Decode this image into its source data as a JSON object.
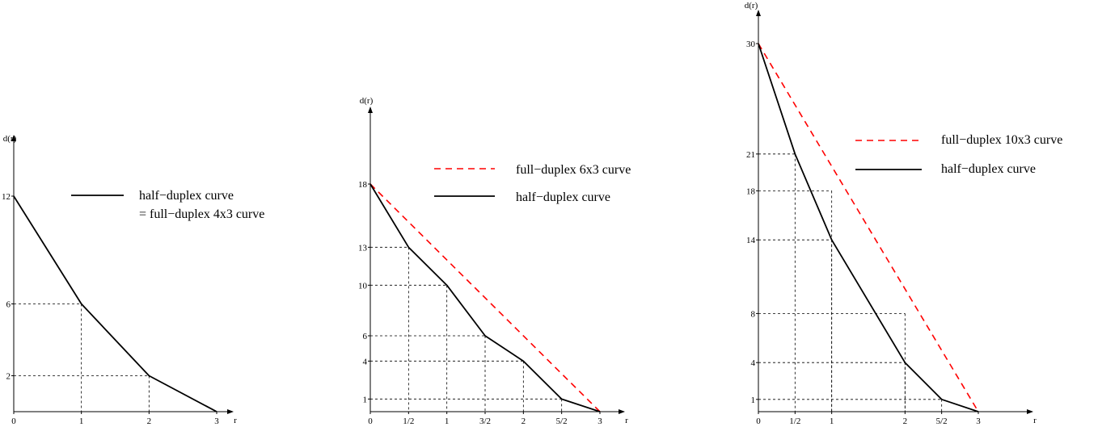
{
  "chart_data": [
    {
      "type": "line",
      "xlabel": "r",
      "ylabel": "d(r)",
      "xlim": [
        0,
        3
      ],
      "ylim": [
        0,
        12
      ],
      "x_ticks": [
        {
          "v": 0,
          "label": "0"
        },
        {
          "v": 1,
          "label": "1"
        },
        {
          "v": 2,
          "label": "2"
        },
        {
          "v": 3,
          "label": "3"
        }
      ],
      "y_ticks": [
        {
          "v": 2,
          "label": "2"
        },
        {
          "v": 6,
          "label": "6"
        },
        {
          "v": 12,
          "label": "12"
        }
      ],
      "guides": [
        [
          1,
          6
        ],
        [
          2,
          2
        ]
      ],
      "series": [
        {
          "name": "half−duplex curve",
          "name2": "= full−duplex 4x3 curve",
          "color": "#000000",
          "dash": false,
          "points": [
            [
              0,
              12
            ],
            [
              1,
              6
            ],
            [
              2,
              2
            ],
            [
              3,
              0
            ]
          ]
        }
      ]
    },
    {
      "type": "line",
      "xlabel": "r",
      "ylabel": "d(r)",
      "xlim": [
        0,
        3
      ],
      "ylim": [
        0,
        18
      ],
      "x_ticks": [
        {
          "v": 0,
          "label": "0"
        },
        {
          "v": 0.5,
          "label": "1/2"
        },
        {
          "v": 1,
          "label": "1"
        },
        {
          "v": 1.5,
          "label": "3/2"
        },
        {
          "v": 2,
          "label": "2"
        },
        {
          "v": 2.5,
          "label": "5/2"
        },
        {
          "v": 3,
          "label": "3"
        }
      ],
      "y_ticks": [
        {
          "v": 1,
          "label": "1"
        },
        {
          "v": 4,
          "label": "4"
        },
        {
          "v": 6,
          "label": "6"
        },
        {
          "v": 10,
          "label": "10"
        },
        {
          "v": 13,
          "label": "13"
        },
        {
          "v": 18,
          "label": "18"
        }
      ],
      "guides": [
        [
          0.5,
          13
        ],
        [
          1,
          10
        ],
        [
          1.5,
          6
        ],
        [
          2,
          4
        ],
        [
          2.5,
          1
        ]
      ],
      "series": [
        {
          "name": "full−duplex 6x3 curve",
          "color": "#ff0000",
          "dash": true,
          "points": [
            [
              0,
              18
            ],
            [
              3,
              0
            ]
          ]
        },
        {
          "name": "half−duplex curve",
          "color": "#000000",
          "dash": false,
          "points": [
            [
              0,
              18
            ],
            [
              0.5,
              13
            ],
            [
              1,
              10
            ],
            [
              1.5,
              6
            ],
            [
              2,
              4
            ],
            [
              2.5,
              1
            ],
            [
              3,
              0
            ]
          ]
        }
      ]
    },
    {
      "type": "line",
      "xlabel": "r",
      "ylabel": "d(r)",
      "xlim": [
        0,
        3
      ],
      "ylim": [
        0,
        30
      ],
      "x_ticks": [
        {
          "v": 0,
          "label": "0"
        },
        {
          "v": 0.5,
          "label": "1/2"
        },
        {
          "v": 1,
          "label": "1"
        },
        {
          "v": 2,
          "label": "2"
        },
        {
          "v": 2.5,
          "label": "5/2"
        },
        {
          "v": 3,
          "label": "3"
        }
      ],
      "y_ticks": [
        {
          "v": 1,
          "label": "1"
        },
        {
          "v": 4,
          "label": "4"
        },
        {
          "v": 8,
          "label": "8"
        },
        {
          "v": 14,
          "label": "14"
        },
        {
          "v": 18,
          "label": "18"
        },
        {
          "v": 21,
          "label": "21"
        },
        {
          "v": 30,
          "label": "30"
        }
      ],
      "guides": [
        [
          0.5,
          21
        ],
        [
          1,
          18
        ],
        [
          1,
          14
        ],
        [
          2,
          8
        ],
        [
          2,
          4
        ],
        [
          2.5,
          1
        ]
      ],
      "series": [
        {
          "name": "full−duplex 10x3 curve",
          "color": "#ff0000",
          "dash": true,
          "points": [
            [
              0,
              30
            ],
            [
              3,
              0
            ]
          ]
        },
        {
          "name": "half−duplex curve",
          "color": "#000000",
          "dash": false,
          "points": [
            [
              0,
              30
            ],
            [
              0.5,
              21
            ],
            [
              1,
              14
            ],
            [
              1.5,
              9
            ],
            [
              2,
              4
            ],
            [
              2.5,
              1
            ],
            [
              3,
              0
            ]
          ]
        }
      ]
    }
  ]
}
